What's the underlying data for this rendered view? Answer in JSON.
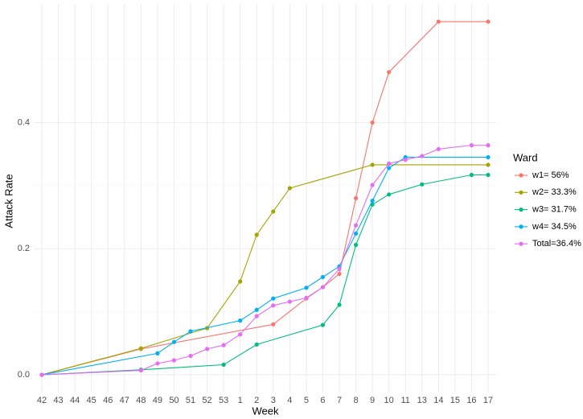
{
  "chart_data": {
    "type": "line",
    "x_label": "Week",
    "y_label": "Attack Rate",
    "legend_title": "Ward",
    "legend_position": "right",
    "categories": [
      "42",
      "43",
      "44",
      "45",
      "46",
      "47",
      "48",
      "49",
      "50",
      "51",
      "52",
      "53",
      "1",
      "2",
      "3",
      "4",
      "5",
      "6",
      "7",
      "8",
      "9",
      "10",
      "11",
      "13",
      "14",
      "15",
      "16",
      "17"
    ],
    "ylim": [
      -0.028,
      0.588
    ],
    "yticks": [
      {
        "value": 0,
        "label": "0.0"
      },
      0.2,
      0.4
    ],
    "grid": true,
    "minor_grid": true,
    "series": [
      {
        "name": "w1= 56%",
        "color": "#F8766D",
        "x": [
          "42",
          "48",
          "3",
          "5",
          "6",
          "7",
          "8",
          "9",
          "10",
          "14",
          "17"
        ],
        "values": [
          0,
          0.041,
          0.08,
          0.121,
          0.139,
          0.16,
          0.28,
          0.4,
          0.48,
          0.56,
          0.56
        ]
      },
      {
        "name": "w2= 33.3%",
        "color": "#A3A500",
        "x": [
          "42",
          "48",
          "52",
          "1",
          "2",
          "3",
          "4",
          "9",
          "17"
        ],
        "values": [
          0,
          0.042,
          0.074,
          0.148,
          0.222,
          0.259,
          0.296,
          0.333,
          0.333
        ]
      },
      {
        "name": "w3= 31.7%",
        "color": "#00BF7D",
        "x": [
          "42",
          "48",
          "53",
          "2",
          "6",
          "7",
          "8",
          "9",
          "10",
          "13",
          "16",
          "17"
        ],
        "values": [
          0,
          0.008,
          0.016,
          0.048,
          0.079,
          0.111,
          0.206,
          0.27,
          0.286,
          0.302,
          0.317,
          0.317
        ]
      },
      {
        "name": "w4= 34.5%",
        "color": "#00B0F6",
        "x": [
          "42",
          "49",
          "50",
          "51",
          "1",
          "2",
          "3",
          "5",
          "6",
          "7",
          "8",
          "9",
          "10",
          "11",
          "17"
        ],
        "values": [
          0,
          0.034,
          0.052,
          0.069,
          0.086,
          0.103,
          0.121,
          0.138,
          0.155,
          0.172,
          0.224,
          0.276,
          0.328,
          0.345,
          0.345
        ]
      },
      {
        "name": "Total=36.4%",
        "color": "#E76BF3",
        "x": [
          "42",
          "48",
          "49",
          "50",
          "51",
          "52",
          "53",
          "1",
          "2",
          "3",
          "4",
          "5",
          "6",
          "7",
          "8",
          "9",
          "10",
          "11",
          "13",
          "14",
          "16",
          "17"
        ],
        "values": [
          0,
          0.007,
          0.018,
          0.023,
          0.03,
          0.041,
          0.047,
          0.064,
          0.093,
          0.11,
          0.116,
          0.122,
          0.139,
          0.168,
          0.237,
          0.301,
          0.335,
          0.341,
          0.347,
          0.358,
          0.364,
          0.364
        ]
      }
    ]
  }
}
